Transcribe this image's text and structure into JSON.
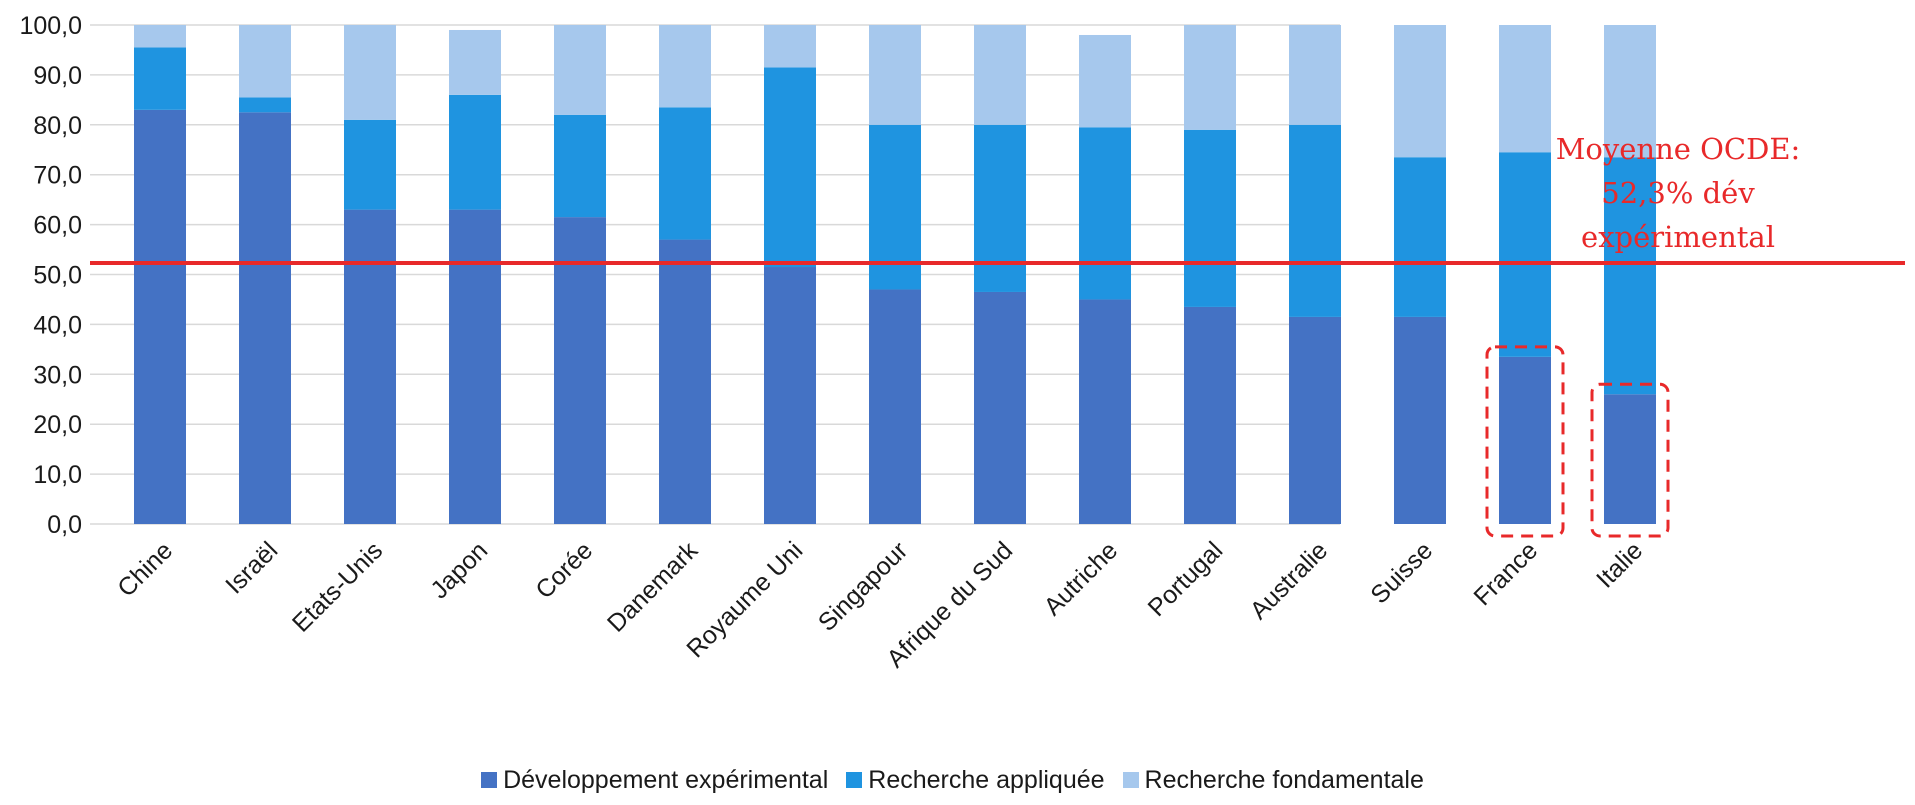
{
  "chart_data": {
    "type": "bar",
    "stacked": true,
    "categories": [
      "Chine",
      "Israël",
      "Etats-Unis",
      "Japon",
      "Corée",
      "Danemark",
      "Royaume Uni",
      "Singapour",
      "Afrique du Sud",
      "Autriche",
      "Portugal",
      "Australie",
      "Suisse",
      "France",
      "Italie"
    ],
    "series": [
      {
        "name": "Développement expérimental",
        "color": "#4472c4",
        "values": [
          83.0,
          82.5,
          63.0,
          63.0,
          61.5,
          57.0,
          51.5,
          47.0,
          46.5,
          45.0,
          43.5,
          41.5,
          41.5,
          33.5,
          26.0
        ]
      },
      {
        "name": "Recherche appliquée",
        "color": "#1f94e0",
        "values": [
          12.5,
          3.0,
          18.0,
          23.0,
          20.5,
          26.5,
          40.0,
          33.0,
          33.5,
          34.5,
          35.5,
          38.5,
          32.0,
          41.0,
          47.5
        ]
      },
      {
        "name": "Recherche fondamentale",
        "color": "#a6c8ed",
        "values": [
          4.5,
          14.5,
          19.0,
          13.0,
          18.0,
          16.5,
          8.5,
          20.0,
          20.0,
          18.5,
          21.0,
          20.0,
          26.5,
          25.5,
          26.5
        ]
      }
    ],
    "ylim": [
      0,
      100
    ],
    "yticks": [
      "0,0",
      "10,0",
      "20,0",
      "30,0",
      "40,0",
      "50,0",
      "60,0",
      "70,0",
      "80,0",
      "90,0",
      "100,0"
    ],
    "grid": true,
    "legend_position": "bottom",
    "reference_line": {
      "value": 52.3,
      "color": "#e8292a"
    },
    "annotation": {
      "lines": [
        "Moyenne OCDE:",
        "52,3% dév",
        "expérimental"
      ],
      "color": "#e8292a"
    },
    "highlighted_categories": [
      "France",
      "Italie"
    ],
    "highlight_color": "#e8292a"
  }
}
